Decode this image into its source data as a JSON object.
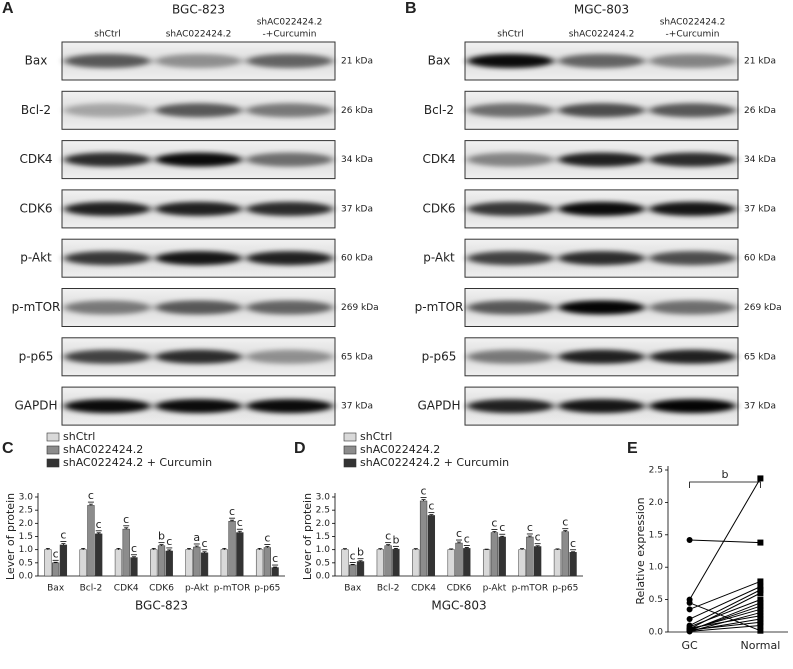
{
  "blots": [
    {
      "panel": "A",
      "title": "BGC-823",
      "columns": [
        [
          "shCtrl"
        ],
        [
          "shAC022424.2"
        ],
        [
          "shAC022424.2",
          "-+Curcumin"
        ]
      ],
      "rows": [
        {
          "protein": "Bax",
          "size": "21 kDa"
        },
        {
          "protein": "Bcl-2",
          "size": "26 kDa"
        },
        {
          "protein": "CDK4",
          "size": "34 kDa"
        },
        {
          "protein": "CDK6",
          "size": "37 kDa"
        },
        {
          "protein": "p-Akt",
          "size": "60 kDa"
        },
        {
          "protein": "p-mTOR",
          "size": "269 kDa"
        },
        {
          "protein": "p-p65",
          "size": "65 kDa"
        },
        {
          "protein": "GAPDH",
          "size": "37 kDa"
        }
      ]
    },
    {
      "panel": "B",
      "title": "MGC-803",
      "columns": [
        [
          "shCtrl"
        ],
        [
          "shAC022424.2"
        ],
        [
          "shAC022424.2",
          "-+Curcumin"
        ]
      ],
      "rows": [
        {
          "protein": "Bax",
          "size": "21 kDa"
        },
        {
          "protein": "Bcl-2",
          "size": "26 kDa"
        },
        {
          "protein": "CDK4",
          "size": "34 kDa"
        },
        {
          "protein": "CDK6",
          "size": "37 kDa"
        },
        {
          "protein": "p-Akt",
          "size": "60 kDa"
        },
        {
          "protein": "p-mTOR",
          "size": "269 kDa"
        },
        {
          "protein": "p-p65",
          "size": "65 kDa"
        },
        {
          "protein": "GAPDH",
          "size": "37 kDa"
        }
      ]
    }
  ],
  "chart_data": [
    {
      "type": "bar",
      "panel": "C",
      "xlabel": "BGC-823",
      "ylabel": "Lever of protein",
      "categories": [
        "Bax",
        "Bcl-2",
        "CDK4",
        "CDK6",
        "p-Akt",
        "p-mTOR",
        "p-p65"
      ],
      "series": [
        {
          "name": "shCtrl",
          "color": "#d9d9d9",
          "values": [
            1.0,
            1.0,
            1.0,
            1.0,
            1.0,
            1.0,
            1.0
          ],
          "errors": [
            0.05,
            0.05,
            0.05,
            0.05,
            0.05,
            0.05,
            0.05
          ]
        },
        {
          "name": "shAC022424.2",
          "color": "#8c8c8c",
          "values": [
            0.5,
            2.68,
            1.78,
            1.15,
            1.1,
            2.08,
            1.08
          ],
          "errors": [
            0.02,
            0.05,
            0.05,
            0.04,
            0.04,
            0.04,
            0.04
          ]
        },
        {
          "name": "shAC022424.2 + Curcumin",
          "color": "#333333",
          "values": [
            1.18,
            1.6,
            0.7,
            0.95,
            0.88,
            1.65,
            0.32
          ],
          "errors": [
            0.05,
            0.04,
            0.03,
            0.04,
            0.04,
            0.05,
            0.02
          ]
        }
      ],
      "significance": [
        [
          "c",
          "c"
        ],
        [
          "c",
          "c"
        ],
        [
          "c",
          "c"
        ],
        [
          "b",
          "c"
        ],
        [
          "a",
          "c"
        ],
        [
          "c",
          "c"
        ],
        [
          "c",
          "c"
        ]
      ],
      "ylim": [
        0,
        3
      ],
      "yticks": [
        {
          "value": 0,
          "label": "0.0"
        },
        {
          "value": 0.5,
          "label": "0.5"
        },
        {
          "value": 1,
          "label": "1.0"
        },
        {
          "value": 1.5,
          "label": "1.5"
        },
        {
          "value": 2,
          "label": "2.0"
        },
        {
          "value": 2.5,
          "label": "2.5"
        },
        {
          "value": 3,
          "label": "3.0"
        }
      ],
      "legend": "top-left"
    },
    {
      "type": "bar",
      "panel": "D",
      "xlabel": "MGC-803",
      "ylabel": "Lever of protein",
      "categories": [
        "Bax",
        "Bcl-2",
        "CDK4",
        "CDK6",
        "p-Akt",
        "p-mTOR",
        "p-p65"
      ],
      "series": [
        {
          "name": "shCtrl",
          "color": "#d9d9d9",
          "values": [
            1.0,
            1.0,
            1.0,
            1.0,
            1.0,
            1.0,
            1.0
          ],
          "errors": [
            0.04,
            0.04,
            0.04,
            0.03,
            0.02,
            0.04,
            0.03
          ]
        },
        {
          "name": "shAC022424.2",
          "color": "#8c8c8c",
          "values": [
            0.42,
            1.15,
            2.85,
            1.25,
            1.65,
            1.48,
            1.68
          ],
          "errors": [
            0.02,
            0.04,
            0.05,
            0.04,
            0.04,
            0.04,
            0.04
          ]
        },
        {
          "name": "shAC022424.2 + Curcumin",
          "color": "#333333",
          "values": [
            0.55,
            1.02,
            2.3,
            1.05,
            1.48,
            1.12,
            0.9
          ],
          "errors": [
            0.03,
            0.03,
            0.03,
            0.03,
            0.03,
            0.03,
            0.02
          ]
        }
      ],
      "significance": [
        [
          "c",
          "b"
        ],
        [
          "c",
          "b"
        ],
        [
          "c",
          "c"
        ],
        [
          "c",
          "c"
        ],
        [
          "c",
          "c"
        ],
        [
          "c",
          "c"
        ],
        [
          "c",
          "c"
        ]
      ],
      "ylim": [
        0,
        3
      ],
      "yticks": [
        {
          "value": 0,
          "label": "0.0"
        },
        {
          "value": 0.5,
          "label": "0.5"
        },
        {
          "value": 1,
          "label": "1.0"
        },
        {
          "value": 1.5,
          "label": "1.5"
        },
        {
          "value": 2,
          "label": "2.0"
        },
        {
          "value": 2.5,
          "label": "2.5"
        },
        {
          "value": 3,
          "label": "3.0"
        }
      ],
      "legend": "top-left"
    },
    {
      "type": "line",
      "panel": "E",
      "ylabel": "Relative expression",
      "annotation": "b",
      "categories": [
        "GC",
        "Normal"
      ],
      "series": [
        {
          "color": "#000000",
          "values": [
            1.42,
            1.38
          ]
        },
        {
          "color": "#000000",
          "values": [
            0.5,
            2.37
          ]
        },
        {
          "color": "#000000",
          "values": [
            0.35,
            0.78
          ]
        },
        {
          "color": "#000000",
          "values": [
            0.2,
            0.7
          ]
        },
        {
          "color": "#000000",
          "values": [
            0.1,
            0.65
          ]
        },
        {
          "color": "#000000",
          "values": [
            0.05,
            0.6
          ]
        },
        {
          "color": "#000000",
          "values": [
            0.08,
            0.5
          ]
        },
        {
          "color": "#000000",
          "values": [
            0.02,
            0.45
          ]
        },
        {
          "color": "#000000",
          "values": [
            0.03,
            0.4
          ]
        },
        {
          "color": "#000000",
          "values": [
            0.04,
            0.35
          ]
        },
        {
          "color": "#000000",
          "values": [
            0.01,
            0.3
          ]
        },
        {
          "color": "#000000",
          "values": [
            0.06,
            0.25
          ]
        },
        {
          "color": "#000000",
          "values": [
            0.02,
            0.2
          ]
        },
        {
          "color": "#000000",
          "values": [
            0.03,
            0.15
          ]
        },
        {
          "color": "#000000",
          "values": [
            0.01,
            0.1
          ]
        },
        {
          "color": "#000000",
          "values": [
            0.45,
            0.02
          ]
        }
      ],
      "ylim": [
        0,
        2.5
      ],
      "yticks": [
        {
          "value": 0,
          "label": "0.0"
        },
        {
          "value": 0.5,
          "label": "0.5"
        },
        {
          "value": 1,
          "label": "1.0"
        },
        {
          "value": 1.5,
          "label": "1.5"
        },
        {
          "value": 2,
          "label": "2.0"
        },
        {
          "value": 2.5,
          "label": "2.5"
        }
      ]
    }
  ]
}
